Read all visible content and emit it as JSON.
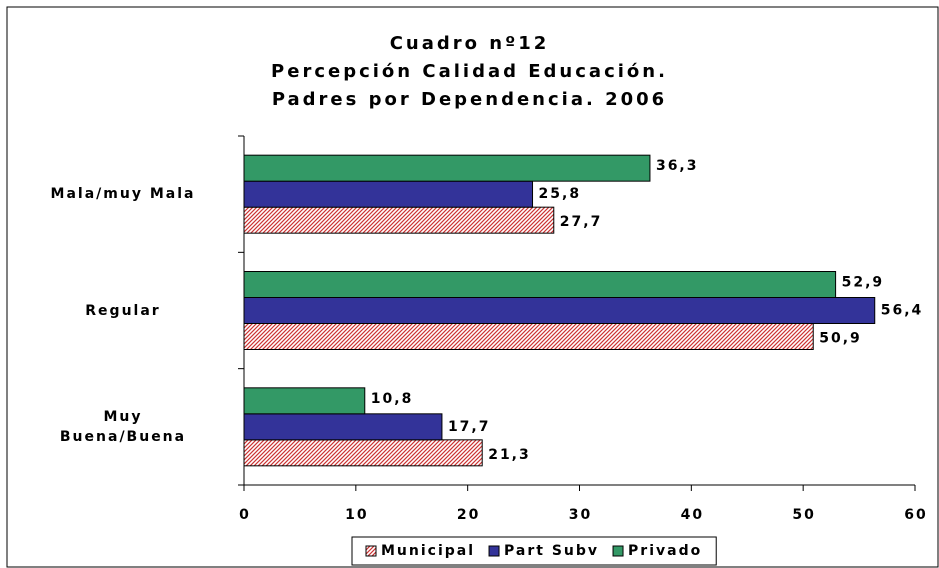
{
  "chart_data": {
    "type": "hbar",
    "title": "Cuadro nº12\nPercepción Calidad Educación.\nPadres por Dependencia. 2006",
    "categories": [
      "Mala/muy Mala",
      "Regular",
      "Muy\nBuena/Buena"
    ],
    "series": [
      {
        "name": "Municipal",
        "color": "#cc3333",
        "pattern": "hatch",
        "values": [
          27.7,
          50.9,
          21.3
        ],
        "value_labels": [
          "27,7",
          "50,9",
          "21,3"
        ]
      },
      {
        "name": "Part Subv",
        "color": "#333399",
        "values": [
          25.8,
          56.4,
          17.7
        ],
        "value_labels": [
          "25,8",
          "56,4",
          "17,7"
        ]
      },
      {
        "name": "Privado",
        "color": "#339966",
        "values": [
          36.3,
          52.9,
          10.8
        ],
        "value_labels": [
          "36,3",
          "52,9",
          "10,8"
        ]
      }
    ],
    "xlim": [
      0,
      60
    ],
    "xticks": [
      0,
      10,
      20,
      30,
      40,
      50,
      60
    ],
    "legend": "bottom"
  }
}
